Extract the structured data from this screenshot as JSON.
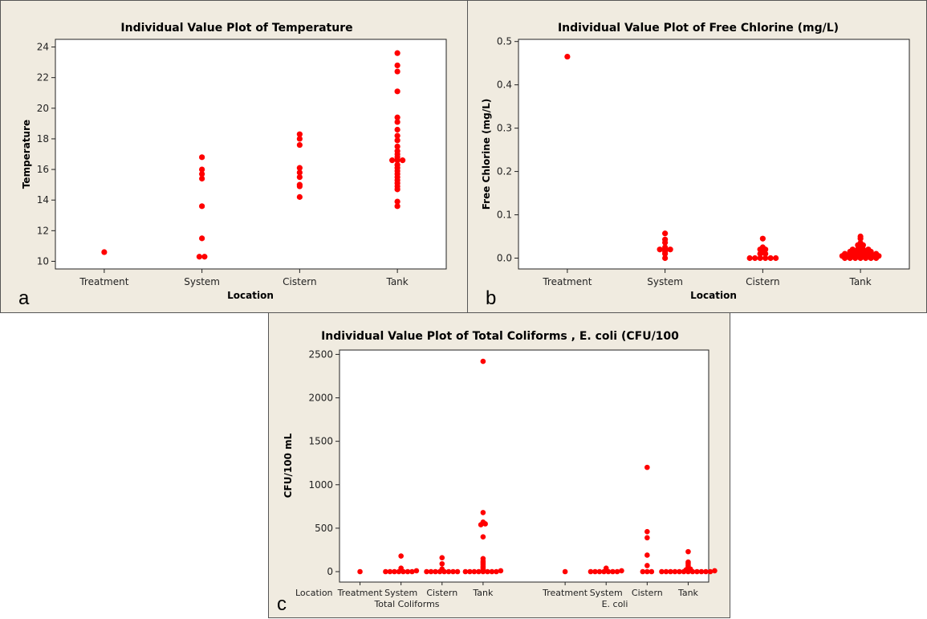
{
  "panels": {
    "a": {
      "label": "a"
    },
    "b": {
      "label": "b"
    },
    "c": {
      "label": "c"
    }
  },
  "chart_data": [
    {
      "id": "a",
      "type": "scatter",
      "title": "Individual Value Plot of Temperature",
      "xlabel": "Location",
      "ylabel": "Temperature",
      "categories": [
        "Treatment",
        "System",
        "Cistern",
        "Tank"
      ],
      "ylim": [
        9.5,
        24.5
      ],
      "yticks": [
        10,
        12,
        14,
        16,
        18,
        20,
        22,
        24
      ],
      "color": "#ff0000",
      "points": [
        [
          "Treatment",
          10.6
        ],
        [
          "System",
          16.8
        ],
        [
          "System",
          16.0
        ],
        [
          "System",
          15.7
        ],
        [
          "System",
          15.4
        ],
        [
          "System",
          13.6
        ],
        [
          "System",
          11.5
        ],
        [
          "System",
          10.3
        ],
        [
          "System",
          10.3
        ],
        [
          "Cistern",
          18.3
        ],
        [
          "Cistern",
          18.0
        ],
        [
          "Cistern",
          17.6
        ],
        [
          "Cistern",
          16.1
        ],
        [
          "Cistern",
          15.8
        ],
        [
          "Cistern",
          15.5
        ],
        [
          "Cistern",
          15.0
        ],
        [
          "Cistern",
          14.9
        ],
        [
          "Cistern",
          14.2
        ],
        [
          "Tank",
          23.6
        ],
        [
          "Tank",
          22.8
        ],
        [
          "Tank",
          22.4
        ],
        [
          "Tank",
          21.1
        ],
        [
          "Tank",
          19.4
        ],
        [
          "Tank",
          19.1
        ],
        [
          "Tank",
          18.6
        ],
        [
          "Tank",
          18.2
        ],
        [
          "Tank",
          17.9
        ],
        [
          "Tank",
          17.5
        ],
        [
          "Tank",
          17.2
        ],
        [
          "Tank",
          17.0
        ],
        [
          "Tank",
          16.8
        ],
        [
          "Tank",
          16.6
        ],
        [
          "Tank",
          16.6
        ],
        [
          "Tank",
          16.6
        ],
        [
          "Tank",
          16.3
        ],
        [
          "Tank",
          16.1
        ],
        [
          "Tank",
          15.9
        ],
        [
          "Tank",
          15.7
        ],
        [
          "Tank",
          15.5
        ],
        [
          "Tank",
          15.3
        ],
        [
          "Tank",
          15.1
        ],
        [
          "Tank",
          14.9
        ],
        [
          "Tank",
          14.7
        ],
        [
          "Tank",
          13.9
        ],
        [
          "Tank",
          13.6
        ]
      ]
    },
    {
      "id": "b",
      "type": "scatter",
      "title": "Individual Value Plot of Free Chlorine (mg/L)",
      "xlabel": "Location",
      "ylabel": "Free Chlorine (mg/L)",
      "categories": [
        "Treatment",
        "System",
        "Cistern",
        "Tank"
      ],
      "ylim": [
        -0.025,
        0.505
      ],
      "yticks": [
        0.0,
        0.1,
        0.2,
        0.3,
        0.4,
        0.5
      ],
      "color": "#ff0000",
      "points": [
        [
          "Treatment",
          0.465
        ],
        [
          "System",
          0.057
        ],
        [
          "System",
          0.043
        ],
        [
          "System",
          0.036
        ],
        [
          "System",
          0.025
        ],
        [
          "System",
          0.02
        ],
        [
          "System",
          0.02
        ],
        [
          "System",
          0.02
        ],
        [
          "System",
          0.015
        ],
        [
          "System",
          0.01
        ],
        [
          "System",
          0.0
        ],
        [
          "Cistern",
          0.045
        ],
        [
          "Cistern",
          0.025
        ],
        [
          "Cistern",
          0.02
        ],
        [
          "Cistern",
          0.02
        ],
        [
          "Cistern",
          0.015
        ],
        [
          "Cistern",
          0.01
        ],
        [
          "Cistern",
          0.01
        ],
        [
          "Cistern",
          0.0
        ],
        [
          "Cistern",
          0.0
        ],
        [
          "Cistern",
          0.0
        ],
        [
          "Cistern",
          0.0
        ],
        [
          "Cistern",
          0.0
        ],
        [
          "Cistern",
          0.0
        ],
        [
          "Tank",
          0.05
        ],
        [
          "Tank",
          0.045
        ],
        [
          "Tank",
          0.035
        ],
        [
          "Tank",
          0.03
        ],
        [
          "Tank",
          0.03
        ],
        [
          "Tank",
          0.025
        ],
        [
          "Tank",
          0.02
        ],
        [
          "Tank",
          0.02
        ],
        [
          "Tank",
          0.02
        ],
        [
          "Tank",
          0.02
        ],
        [
          "Tank",
          0.015
        ],
        [
          "Tank",
          0.015
        ],
        [
          "Tank",
          0.015
        ],
        [
          "Tank",
          0.015
        ],
        [
          "Tank",
          0.015
        ],
        [
          "Tank",
          0.01
        ],
        [
          "Tank",
          0.01
        ],
        [
          "Tank",
          0.01
        ],
        [
          "Tank",
          0.01
        ],
        [
          "Tank",
          0.01
        ],
        [
          "Tank",
          0.01
        ],
        [
          "Tank",
          0.01
        ],
        [
          "Tank",
          0.005
        ],
        [
          "Tank",
          0.005
        ],
        [
          "Tank",
          0.005
        ],
        [
          "Tank",
          0.005
        ],
        [
          "Tank",
          0.005
        ],
        [
          "Tank",
          0.005
        ],
        [
          "Tank",
          0.005
        ],
        [
          "Tank",
          0.005
        ],
        [
          "Tank",
          0.0
        ],
        [
          "Tank",
          0.0
        ],
        [
          "Tank",
          0.0
        ],
        [
          "Tank",
          0.0
        ],
        [
          "Tank",
          0.0
        ],
        [
          "Tank",
          0.0
        ],
        [
          "Tank",
          0.0
        ]
      ]
    },
    {
      "id": "c",
      "type": "scatter",
      "title": "Individual Value Plot of Total Coliforms , E. coli (CFU/100",
      "ylabel": "CFU/100 mL",
      "xlabel_row": "Location",
      "groups": [
        "Total Coliforms",
        "E. coli"
      ],
      "categories": [
        "Treatment",
        "System",
        "Cistern",
        "Tank"
      ],
      "ylim": [
        -120,
        2550
      ],
      "yticks": [
        0,
        500,
        1000,
        1500,
        2000,
        2500
      ],
      "color": "#ff0000",
      "points": [
        [
          "Total Coliforms",
          "Treatment",
          0
        ],
        [
          "Total Coliforms",
          "System",
          180
        ],
        [
          "Total Coliforms",
          "System",
          40
        ],
        [
          "Total Coliforms",
          "System",
          10
        ],
        [
          "Total Coliforms",
          "System",
          0
        ],
        [
          "Total Coliforms",
          "System",
          0
        ],
        [
          "Total Coliforms",
          "System",
          0
        ],
        [
          "Total Coliforms",
          "System",
          0
        ],
        [
          "Total Coliforms",
          "System",
          0
        ],
        [
          "Total Coliforms",
          "System",
          0
        ],
        [
          "Total Coliforms",
          "System",
          0
        ],
        [
          "Total Coliforms",
          "Cistern",
          160
        ],
        [
          "Total Coliforms",
          "Cistern",
          90
        ],
        [
          "Total Coliforms",
          "Cistern",
          30
        ],
        [
          "Total Coliforms",
          "Cistern",
          0
        ],
        [
          "Total Coliforms",
          "Cistern",
          0
        ],
        [
          "Total Coliforms",
          "Cistern",
          0
        ],
        [
          "Total Coliforms",
          "Cistern",
          0
        ],
        [
          "Total Coliforms",
          "Cistern",
          0
        ],
        [
          "Total Coliforms",
          "Cistern",
          0
        ],
        [
          "Total Coliforms",
          "Cistern",
          0
        ],
        [
          "Total Coliforms",
          "Cistern",
          0
        ],
        [
          "Total Coliforms",
          "Tank",
          2420
        ],
        [
          "Total Coliforms",
          "Tank",
          680
        ],
        [
          "Total Coliforms",
          "Tank",
          570
        ],
        [
          "Total Coliforms",
          "Tank",
          550
        ],
        [
          "Total Coliforms",
          "Tank",
          540
        ],
        [
          "Total Coliforms",
          "Tank",
          400
        ],
        [
          "Total Coliforms",
          "Tank",
          150
        ],
        [
          "Total Coliforms",
          "Tank",
          120
        ],
        [
          "Total Coliforms",
          "Tank",
          100
        ],
        [
          "Total Coliforms",
          "Tank",
          80
        ],
        [
          "Total Coliforms",
          "Tank",
          60
        ],
        [
          "Total Coliforms",
          "Tank",
          40
        ],
        [
          "Total Coliforms",
          "Tank",
          20
        ],
        [
          "Total Coliforms",
          "Tank",
          10
        ],
        [
          "Total Coliforms",
          "Tank",
          0
        ],
        [
          "Total Coliforms",
          "Tank",
          0
        ],
        [
          "Total Coliforms",
          "Tank",
          0
        ],
        [
          "Total Coliforms",
          "Tank",
          0
        ],
        [
          "Total Coliforms",
          "Tank",
          0
        ],
        [
          "Total Coliforms",
          "Tank",
          0
        ],
        [
          "Total Coliforms",
          "Tank",
          0
        ],
        [
          "Total Coliforms",
          "Tank",
          0
        ],
        [
          "E. coli",
          "Treatment",
          0
        ],
        [
          "E. coli",
          "System",
          40
        ],
        [
          "E. coli",
          "System",
          10
        ],
        [
          "E. coli",
          "System",
          0
        ],
        [
          "E. coli",
          "System",
          0
        ],
        [
          "E. coli",
          "System",
          0
        ],
        [
          "E. coli",
          "System",
          0
        ],
        [
          "E. coli",
          "System",
          0
        ],
        [
          "E. coli",
          "System",
          0
        ],
        [
          "E. coli",
          "System",
          0
        ],
        [
          "E. coli",
          "Cistern",
          1200
        ],
        [
          "E. coli",
          "Cistern",
          460
        ],
        [
          "E. coli",
          "Cistern",
          390
        ],
        [
          "E. coli",
          "Cistern",
          190
        ],
        [
          "E. coli",
          "Cistern",
          70
        ],
        [
          "E. coli",
          "Cistern",
          0
        ],
        [
          "E. coli",
          "Cistern",
          0
        ],
        [
          "E. coli",
          "Cistern",
          0
        ],
        [
          "E. coli",
          "Tank",
          230
        ],
        [
          "E. coli",
          "Tank",
          110
        ],
        [
          "E. coli",
          "Tank",
          90
        ],
        [
          "E. coli",
          "Tank",
          70
        ],
        [
          "E. coli",
          "Tank",
          50
        ],
        [
          "E. coli",
          "Tank",
          30
        ],
        [
          "E. coli",
          "Tank",
          20
        ],
        [
          "E. coli",
          "Tank",
          10
        ],
        [
          "E. coli",
          "Tank",
          0
        ],
        [
          "E. coli",
          "Tank",
          0
        ],
        [
          "E. coli",
          "Tank",
          0
        ],
        [
          "E. coli",
          "Tank",
          0
        ],
        [
          "E. coli",
          "Tank",
          0
        ],
        [
          "E. coli",
          "Tank",
          0
        ],
        [
          "E. coli",
          "Tank",
          0
        ],
        [
          "E. coli",
          "Tank",
          0
        ],
        [
          "E. coli",
          "Tank",
          0
        ],
        [
          "E. coli",
          "Tank",
          0
        ],
        [
          "E. coli",
          "Tank",
          0
        ],
        [
          "E. coli",
          "Tank",
          0
        ]
      ]
    }
  ]
}
